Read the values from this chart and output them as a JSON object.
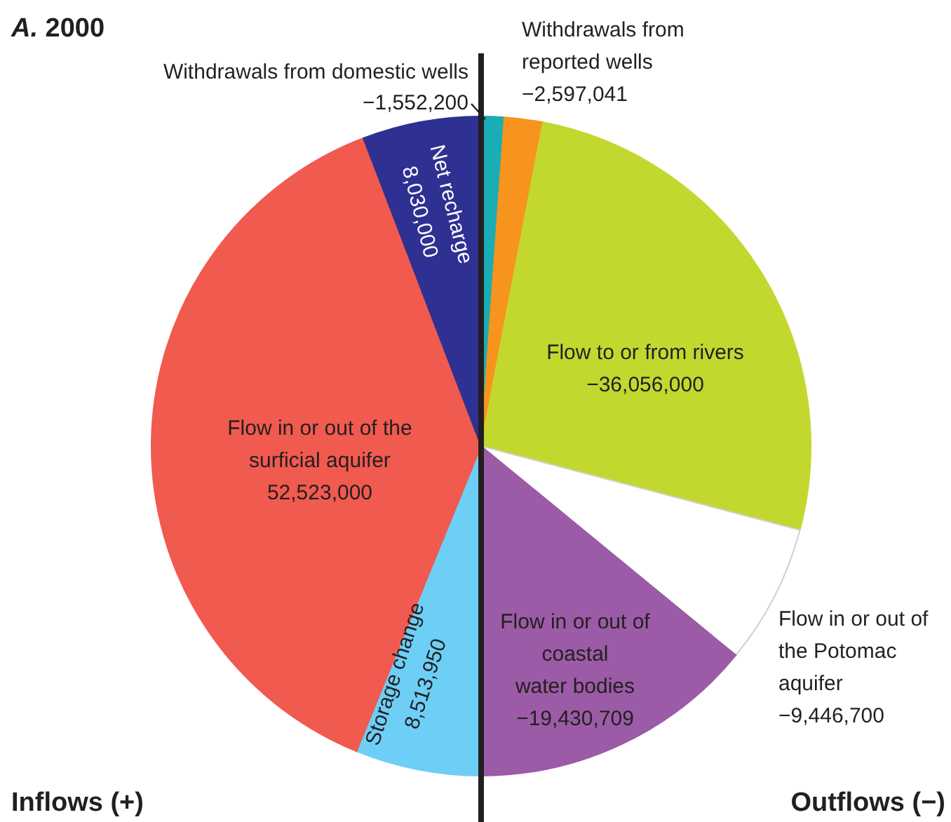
{
  "chart_data": {
    "type": "pie",
    "title": "A. 2000",
    "categories": [
      "Withdrawals from domestic wells",
      "Withdrawals from reported wells",
      "Flow to or from rivers",
      "Flow in or out of the Potomac aquifer",
      "Flow in or out of coastal water bodies",
      "Storage change",
      "Flow in or out of the surficial aquifer",
      "Net recharge"
    ],
    "values": [
      1552200,
      2597041,
      36056000,
      9446700,
      19430709,
      8513950,
      52523000,
      8030000
    ],
    "value_labels": [
      null,
      null,
      null,
      null,
      null,
      "8,513,950",
      "52,523,000",
      "8,030,000"
    ],
    "colors": [
      "#1aadb5",
      "#f7941d",
      "#c3d82f",
      "#ffffff",
      "#9b5ba6",
      "#6dcff6",
      "#f15a4f",
      "#2e3192"
    ],
    "annotations": [
      "Inflows (+)",
      "Outflows (−)",
      "−1,552,200",
      "−2,597,041",
      "−36,056,000",
      "−9,446,700",
      "−19,430,709"
    ]
  }
}
